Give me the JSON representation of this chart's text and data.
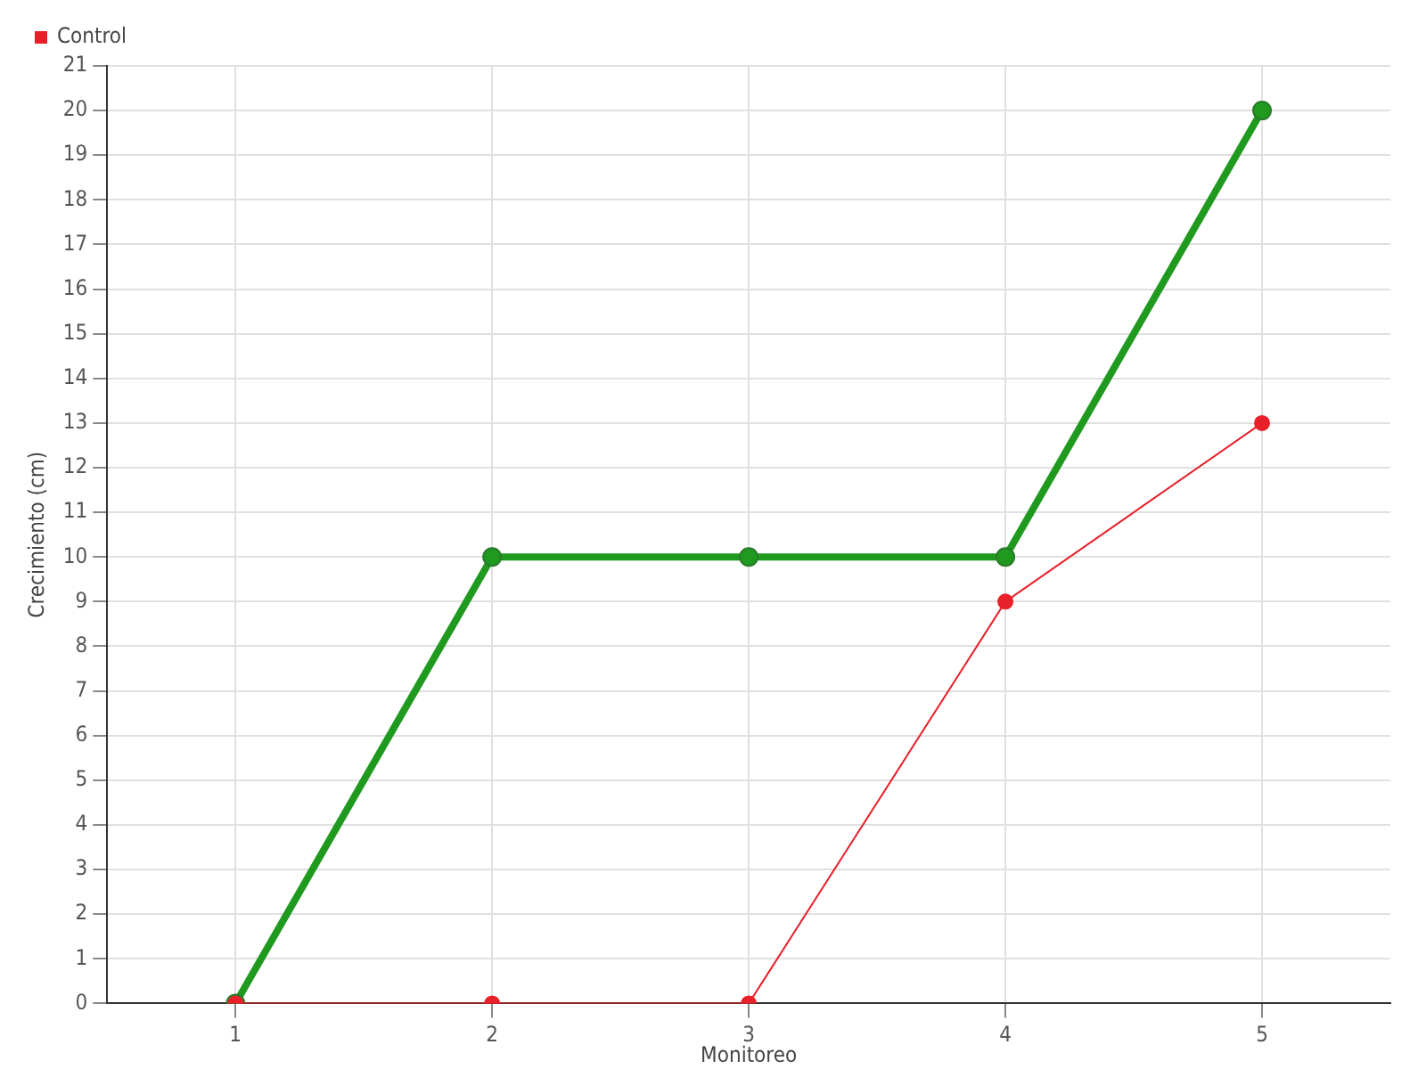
{
  "chart_data": {
    "type": "line",
    "xlabel": "Monitoreo",
    "ylabel": "Crecimiento (cm)",
    "categories": [
      "1",
      "2",
      "3",
      "4",
      "5"
    ],
    "series": [
      {
        "color": "#1f9a1f",
        "values": [
          0,
          10,
          10,
          10,
          20
        ]
      },
      {
        "name": "Control",
        "color": "#e8202a",
        "values": [
          0,
          0,
          0,
          9,
          13
        ]
      }
    ],
    "ylim": [
      0,
      21
    ],
    "yticks": [
      0,
      1,
      2,
      3,
      4,
      5,
      6,
      7,
      8,
      9,
      10,
      11,
      12,
      13,
      14,
      15,
      16,
      17,
      18,
      19,
      20,
      21
    ],
    "grid": true,
    "legend": "top left",
    "marker": "circle",
    "line_style": "solid"
  }
}
